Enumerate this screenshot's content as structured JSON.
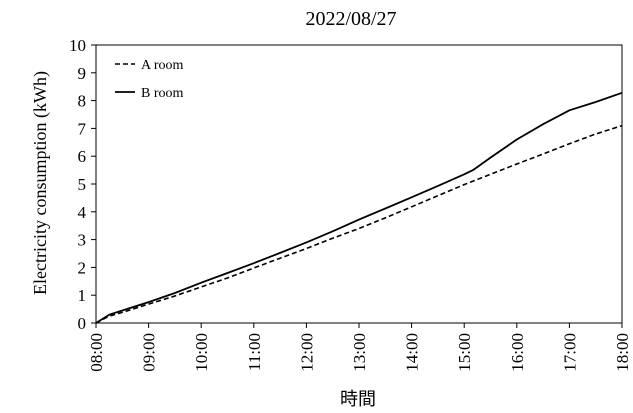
{
  "chart_data": {
    "type": "line",
    "title": "2022/08/27",
    "xlabel": "時間",
    "ylabel": "Electricity consumption (kWh)",
    "x_tick_labels": [
      "08:00",
      "09:00",
      "10:00",
      "11:00",
      "12:00",
      "13:00",
      "14:00",
      "15:00",
      "16:00",
      "17:00",
      "18:00"
    ],
    "y_tick_labels": [
      "0",
      "1",
      "2",
      "3",
      "4",
      "5",
      "6",
      "7",
      "8",
      "9",
      "10"
    ],
    "ylim": [
      0,
      10
    ],
    "xlim": [
      "08:00",
      "18:00"
    ],
    "grid": false,
    "legend_position": "top-left",
    "series": [
      {
        "name": "A room",
        "style": "dashed",
        "color": "#000000",
        "x": [
          "08:00",
          "08:15",
          "08:30",
          "09:00",
          "09:30",
          "10:00",
          "10:30",
          "11:00",
          "11:30",
          "12:00",
          "12:30",
          "13:00",
          "13:30",
          "14:00",
          "14:30",
          "15:00",
          "15:30",
          "16:00",
          "16:30",
          "17:00",
          "17:30",
          "18:00"
        ],
        "y": [
          0,
          0.25,
          0.38,
          0.68,
          0.97,
          1.3,
          1.62,
          1.98,
          2.33,
          2.68,
          3.05,
          3.4,
          3.78,
          4.18,
          4.58,
          4.98,
          5.35,
          5.72,
          6.08,
          6.45,
          6.8,
          7.1
        ]
      },
      {
        "name": "B room",
        "style": "solid",
        "color": "#000000",
        "x": [
          "08:00",
          "08:15",
          "08:30",
          "09:00",
          "09:30",
          "10:00",
          "10:30",
          "11:00",
          "11:30",
          "12:00",
          "12:30",
          "13:00",
          "13:30",
          "14:00",
          "14:30",
          "15:00",
          "15:10",
          "15:30",
          "16:00",
          "16:30",
          "17:00",
          "17:30",
          "18:00"
        ],
        "y": [
          0,
          0.3,
          0.45,
          0.75,
          1.08,
          1.45,
          1.8,
          2.15,
          2.52,
          2.9,
          3.3,
          3.72,
          4.12,
          4.52,
          4.93,
          5.35,
          5.5,
          5.95,
          6.6,
          7.15,
          7.65,
          7.95,
          8.28
        ]
      }
    ]
  }
}
